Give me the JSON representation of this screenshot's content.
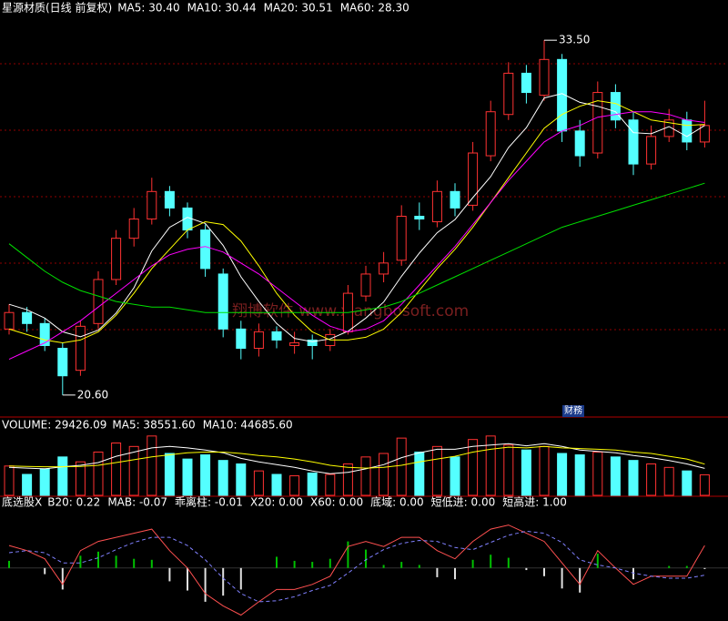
{
  "chart_data": [
    {
      "type": "candlestick",
      "title": "星源材质(日线 前复权)",
      "open": [
        23.0,
        23.6,
        23.2,
        22.3,
        21.5,
        23.2,
        24.8,
        26.3,
        27.0,
        28.0,
        27.4,
        26.6,
        25.0,
        23.0,
        22.3,
        22.9,
        22.4,
        22.6,
        22.4,
        22.9,
        24.2,
        25.0,
        25.5,
        27.1,
        26.9,
        28.0,
        27.5,
        29.3,
        30.8,
        32.3,
        31.5,
        32.8,
        30.2,
        29.4,
        31.6,
        30.6,
        29.0,
        30.0,
        30.6,
        29.8
      ],
      "high": [
        23.9,
        23.8,
        23.4,
        22.5,
        23.3,
        25.1,
        26.6,
        27.4,
        28.5,
        28.2,
        27.6,
        26.8,
        25.2,
        23.3,
        23.2,
        23.1,
        22.9,
        22.8,
        23.0,
        24.6,
        25.3,
        25.8,
        27.5,
        27.6,
        28.4,
        28.3,
        29.8,
        31.3,
        32.7,
        32.6,
        33.5,
        33.0,
        30.6,
        32.0,
        31.9,
        30.9,
        30.4,
        31.0,
        30.9,
        31.3
      ],
      "low": [
        22.8,
        22.9,
        22.2,
        20.6,
        21.3,
        23.0,
        24.6,
        26.0,
        26.8,
        27.1,
        26.3,
        24.9,
        22.7,
        21.9,
        22.0,
        22.3,
        22.1,
        21.9,
        22.2,
        22.8,
        24.0,
        24.7,
        25.3,
        26.6,
        26.7,
        27.1,
        27.3,
        29.1,
        30.6,
        31.2,
        31.3,
        29.8,
        28.9,
        29.2,
        30.3,
        28.6,
        28.8,
        29.8,
        29.5,
        29.6
      ],
      "close": [
        23.6,
        23.2,
        22.4,
        21.3,
        23.1,
        24.8,
        26.3,
        27.0,
        28.0,
        27.4,
        26.6,
        25.2,
        23.0,
        22.3,
        22.9,
        22.6,
        22.5,
        22.4,
        22.8,
        24.3,
        25.0,
        25.4,
        27.1,
        27.0,
        28.0,
        27.4,
        29.4,
        30.9,
        32.3,
        31.6,
        32.8,
        30.2,
        29.3,
        31.6,
        30.6,
        29.0,
        30.0,
        30.6,
        29.8,
        30.4
      ],
      "up_color": "#ff3232",
      "down_color": "#54ffff",
      "series": [
        {
          "name": "MA5: 30.40",
          "color": "#ffffff",
          "values": [
            23.9,
            23.7,
            23.4,
            22.9,
            22.72,
            22.96,
            23.58,
            24.5,
            25.84,
            26.7,
            27.06,
            26.84,
            26.04,
            24.9,
            24.0,
            23.2,
            22.66,
            22.54,
            22.64,
            22.92,
            23.4,
            23.98,
            24.92,
            25.76,
            26.5,
            26.98,
            27.78,
            28.54,
            29.6,
            30.32,
            31.4,
            31.56,
            31.24,
            31.1,
            30.9,
            30.14,
            30.1,
            30.36,
            30.0,
            30.4
          ]
        },
        {
          "name": "MA10: 30.44",
          "color": "#ffff00",
          "values": [
            23.0,
            22.8,
            22.6,
            22.5,
            22.6,
            22.9,
            23.5,
            24.3,
            25.2,
            25.9,
            26.6,
            26.9,
            26.8,
            26.2,
            25.3,
            24.3,
            23.5,
            22.9,
            22.6,
            22.6,
            22.7,
            23.0,
            23.6,
            24.4,
            25.2,
            25.9,
            26.7,
            27.6,
            28.5,
            29.4,
            30.3,
            30.8,
            31.1,
            31.3,
            31.2,
            30.9,
            30.6,
            30.5,
            30.4,
            30.44
          ]
        },
        {
          "name": "MA20: 30.51",
          "color": "#ff00ff",
          "values": [
            21.9,
            22.2,
            22.5,
            22.9,
            23.3,
            23.8,
            24.3,
            24.8,
            25.3,
            25.7,
            25.9,
            26.0,
            25.8,
            25.4,
            25.0,
            24.5,
            24.0,
            23.5,
            23.1,
            22.9,
            23.0,
            23.3,
            23.9,
            24.6,
            25.3,
            26.0,
            26.8,
            27.6,
            28.4,
            29.1,
            29.8,
            30.2,
            30.4,
            30.7,
            30.8,
            30.9,
            30.9,
            30.8,
            30.6,
            30.51
          ]
        },
        {
          "name": "MA60: 28.30",
          "color": "#00e000",
          "values": [
            26.1,
            25.6,
            25.1,
            24.7,
            24.4,
            24.2,
            24.0,
            23.9,
            23.8,
            23.8,
            23.7,
            23.6,
            23.6,
            23.6,
            23.6,
            23.6,
            23.6,
            23.6,
            23.6,
            23.6,
            23.7,
            23.8,
            24.0,
            24.3,
            24.6,
            24.9,
            25.2,
            25.5,
            25.8,
            26.1,
            26.4,
            26.7,
            26.9,
            27.1,
            27.3,
            27.5,
            27.7,
            27.9,
            28.1,
            28.3
          ]
        }
      ],
      "high_label": "33.50",
      "low_label": "20.60",
      "watermark": "翔博软件 www.xiangbosoft.com",
      "badge": "财務",
      "ylim": [
        19.9,
        34.3
      ]
    },
    {
      "type": "bar",
      "title": "VOLUME: 29426.09",
      "values": [
        42000,
        30000,
        38000,
        55000,
        48000,
        62000,
        75000,
        70000,
        85000,
        60000,
        52000,
        58000,
        50000,
        45000,
        35000,
        30000,
        28000,
        32000,
        30000,
        45000,
        55000,
        60000,
        82000,
        62000,
        70000,
        55000,
        80000,
        85000,
        72000,
        65000,
        70000,
        60000,
        58000,
        62000,
        55000,
        50000,
        45000,
        40000,
        35000,
        29426.09
      ],
      "series": [
        {
          "name": "MA5: 38551.60",
          "color": "#ffffff",
          "values": [
            40000,
            39000,
            38000,
            41000,
            43000,
            47000,
            56000,
            62000,
            68000,
            70000,
            68000,
            65000,
            61000,
            53000,
            48000,
            44000,
            40000,
            35000,
            31000,
            33000,
            38000,
            44000,
            54000,
            61000,
            66000,
            66000,
            70000,
            72000,
            74000,
            71000,
            74000,
            70000,
            65000,
            63000,
            61000,
            57000,
            54000,
            50000,
            45000,
            38551.6
          ]
        },
        {
          "name": "MA10: 44685.60",
          "color": "#ffff00",
          "values": [
            42000,
            41500,
            41000,
            41000,
            41500,
            43000,
            47000,
            51000,
            55000,
            58000,
            61000,
            62000,
            62000,
            60000,
            57000,
            55000,
            52000,
            48000,
            43000,
            40000,
            39000,
            40000,
            43000,
            48000,
            52000,
            56000,
            62000,
            66000,
            69000,
            68000,
            70000,
            68000,
            67000,
            66000,
            65000,
            62000,
            60000,
            56000,
            52000,
            44685.6
          ]
        }
      ],
      "ylim": [
        0,
        90000
      ]
    },
    {
      "type": "indicator",
      "title": "底选股X",
      "series": [
        {
          "name": "B20: 0.22",
          "color": "#ff5050",
          "style": "line",
          "values": [
            0.22,
            0.17,
            0.09,
            -0.16,
            0.17,
            0.26,
            0.3,
            0.34,
            0.38,
            0.17,
            0.0,
            -0.25,
            -0.37,
            -0.46,
            -0.33,
            -0.21,
            -0.21,
            -0.16,
            -0.08,
            0.21,
            0.26,
            0.21,
            0.3,
            0.3,
            0.17,
            0.09,
            0.26,
            0.38,
            0.42,
            0.34,
            0.26,
            0.05,
            -0.16,
            0.17,
            0.0,
            -0.16,
            -0.08,
            -0.08,
            -0.08,
            0.22
          ]
        },
        {
          "name": "MAB: -0.07",
          "color": "#8080ff",
          "style": "dash",
          "values": [
            0.15,
            0.17,
            0.15,
            0.05,
            0.05,
            0.1,
            0.18,
            0.25,
            0.3,
            0.3,
            0.22,
            0.08,
            -0.1,
            -0.25,
            -0.33,
            -0.32,
            -0.28,
            -0.22,
            -0.17,
            -0.05,
            0.08,
            0.18,
            0.24,
            0.27,
            0.26,
            0.2,
            0.18,
            0.25,
            0.32,
            0.36,
            0.34,
            0.25,
            0.08,
            0.03,
            0.0,
            -0.05,
            -0.08,
            -0.1,
            -0.1,
            -0.07
          ]
        },
        {
          "name": "乖离柱: -0.01",
          "color": "#ff40ff",
          "style": "bar",
          "values": [
            0.07,
            0.0,
            -0.06,
            -0.21,
            0.12,
            0.16,
            0.12,
            0.09,
            0.08,
            -0.13,
            -0.22,
            -0.33,
            -0.27,
            -0.21,
            0.0,
            0.11,
            0.07,
            0.06,
            0.09,
            0.26,
            0.18,
            0.03,
            0.06,
            0.03,
            -0.09,
            -0.11,
            0.08,
            0.13,
            0.1,
            -0.02,
            -0.08,
            -0.2,
            -0.24,
            0.14,
            0.0,
            -0.11,
            0.0,
            0.02,
            0.02,
            -0.01
          ]
        }
      ],
      "bar_up_color": "#00c000",
      "bar_down_color": "#e0e0e0",
      "legend": [
        {
          "label": "X20: 0.00",
          "color": "#ff5050"
        },
        {
          "label": "X60: 0.00",
          "color": "#ffffff"
        },
        {
          "label": "底域: 0.00",
          "color": "#00e000"
        },
        {
          "label": "短低进: 0.00",
          "color": "#ff3030"
        },
        {
          "label": "短高进: 1.00",
          "color": "#ffffff"
        }
      ],
      "ylim": [
        -0.5,
        0.55
      ]
    }
  ]
}
